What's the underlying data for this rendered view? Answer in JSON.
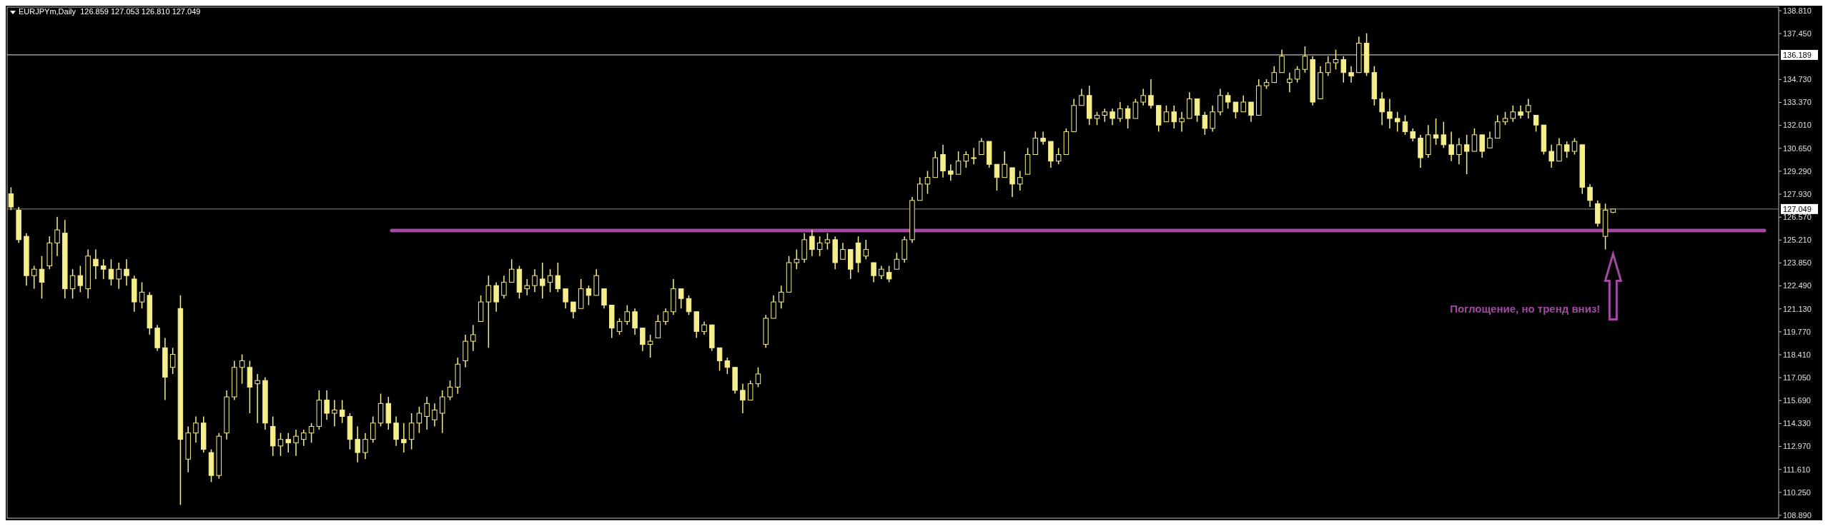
{
  "chart_data": {
    "type": "candlestick",
    "title": "EURJPYm,Daily  126.859 127.053 126.810 127.049",
    "color": "#f5ee8a",
    "categories": [
      null,
      null,
      null,
      null,
      null,
      null,
      null,
      null,
      null,
      null,
      null,
      null,
      null,
      null,
      null,
      null,
      null,
      null,
      null,
      null,
      null,
      null,
      null,
      null,
      null,
      null,
      null,
      null,
      null,
      null,
      null,
      null,
      null,
      null,
      null,
      null,
      null,
      null,
      null,
      null,
      null,
      null,
      null,
      null,
      null,
      null,
      null,
      null,
      null,
      null,
      null,
      null,
      null,
      null,
      null,
      null,
      null,
      null,
      null,
      null,
      null,
      null,
      null,
      null,
      null,
      null,
      null,
      null,
      null,
      null,
      null,
      null,
      null,
      null,
      null,
      null,
      null,
      null,
      null,
      null,
      null,
      null,
      null,
      null,
      null,
      null,
      null,
      null,
      null,
      null,
      null,
      null,
      null,
      null,
      null,
      null,
      null,
      null,
      null,
      null,
      null,
      null,
      null,
      null,
      null,
      null,
      null,
      null,
      null,
      null,
      null,
      null,
      null,
      null,
      null,
      null,
      null,
      null,
      null,
      null,
      null,
      null,
      null,
      null,
      null,
      null,
      null,
      null,
      null,
      null,
      null,
      null,
      null,
      null,
      null,
      null,
      null,
      null,
      null,
      null,
      null,
      null,
      null,
      null,
      null,
      null,
      null,
      null,
      null,
      null,
      null,
      null,
      null,
      null,
      null,
      null,
      null,
      null,
      null,
      null,
      null,
      null,
      null,
      null,
      null,
      null,
      null,
      null,
      null,
      null,
      null,
      null,
      null,
      null,
      null,
      null,
      null,
      null,
      null,
      null,
      null,
      null,
      null,
      null,
      null,
      null,
      null,
      null,
      null,
      null,
      null,
      null,
      null,
      null,
      null,
      null,
      null,
      null,
      null,
      null,
      null,
      null,
      null,
      null,
      null,
      null,
      null,
      null,
      null,
      null,
      null,
      null,
      null,
      null,
      null,
      null,
      null,
      null,
      null,
      null,
      null,
      null,
      null,
      null,
      null,
      null,
      null,
      null,
      null,
      null
    ],
    "ohlc": [
      [
        127.95,
        128.34,
        126.98,
        127.17
      ],
      [
        126.98,
        127.17,
        125.04,
        125.23
      ],
      [
        125.43,
        125.62,
        122.51,
        123.1
      ],
      [
        123.1,
        123.68,
        122.32,
        123.48
      ],
      [
        123.48,
        124.26,
        121.74,
        122.71
      ],
      [
        123.68,
        125.43,
        123.48,
        125.04
      ],
      [
        125.04,
        126.59,
        124.26,
        125.81
      ],
      [
        125.62,
        126.4,
        121.74,
        122.32
      ],
      [
        122.32,
        123.48,
        121.74,
        123.1
      ],
      [
        123.1,
        123.68,
        122.12,
        122.51
      ],
      [
        122.32,
        124.65,
        121.74,
        124.26
      ],
      [
        124.07,
        124.65,
        122.9,
        123.68
      ],
      [
        123.68,
        124.07,
        122.9,
        123.48
      ],
      [
        123.48,
        124.07,
        122.51,
        122.9
      ],
      [
        122.9,
        123.87,
        122.32,
        123.48
      ],
      [
        123.48,
        124.07,
        122.51,
        123.1
      ],
      [
        122.9,
        123.1,
        120.96,
        121.54
      ],
      [
        121.54,
        122.71,
        121.15,
        122.12
      ],
      [
        121.93,
        122.12,
        119.6,
        119.99
      ],
      [
        119.99,
        120.18,
        118.63,
        118.82
      ],
      [
        118.82,
        119.41,
        115.72,
        117.08
      ],
      [
        117.66,
        118.82,
        117.27,
        118.43
      ],
      [
        121.15,
        121.93,
        109.5,
        113.39
      ],
      [
        112.22,
        114.16,
        111.44,
        113.77
      ],
      [
        113.77,
        114.75,
        113.19,
        114.36
      ],
      [
        114.36,
        114.75,
        112.61,
        112.8
      ],
      [
        112.61,
        112.8,
        110.86,
        111.25
      ],
      [
        111.25,
        113.77,
        111.06,
        113.58
      ],
      [
        113.77,
        116.3,
        113.39,
        115.91
      ],
      [
        115.91,
        118.05,
        115.72,
        117.66
      ],
      [
        117.66,
        118.43,
        116.69,
        118.05
      ],
      [
        117.66,
        118.05,
        114.94,
        116.49
      ],
      [
        116.69,
        117.27,
        114.36,
        116.88
      ],
      [
        116.88,
        117.08,
        113.97,
        114.36
      ],
      [
        114.16,
        114.75,
        112.41,
        113.0
      ],
      [
        113.0,
        113.77,
        112.41,
        113.39
      ],
      [
        113.39,
        113.77,
        112.61,
        113.19
      ],
      [
        113.19,
        113.97,
        112.41,
        113.58
      ],
      [
        113.39,
        113.97,
        113.0,
        113.77
      ],
      [
        113.77,
        114.36,
        113.19,
        114.16
      ],
      [
        114.16,
        116.3,
        113.97,
        115.72
      ],
      [
        115.72,
        116.3,
        114.55,
        114.94
      ],
      [
        114.94,
        115.72,
        114.16,
        115.13
      ],
      [
        115.13,
        115.72,
        114.36,
        114.75
      ],
      [
        114.75,
        114.94,
        112.8,
        113.39
      ],
      [
        113.39,
        114.16,
        112.03,
        112.61
      ],
      [
        112.61,
        113.77,
        112.22,
        113.39
      ],
      [
        113.39,
        114.75,
        113.19,
        114.36
      ],
      [
        114.36,
        116.1,
        114.16,
        115.52
      ],
      [
        115.52,
        115.91,
        113.97,
        114.36
      ],
      [
        114.36,
        114.75,
        113.0,
        113.39
      ],
      [
        113.39,
        114.36,
        112.61,
        113.19
      ],
      [
        113.39,
        114.94,
        112.8,
        114.36
      ],
      [
        114.36,
        115.33,
        113.77,
        114.94
      ],
      [
        114.75,
        115.91,
        113.97,
        115.52
      ],
      [
        114.55,
        115.52,
        114.16,
        115.13
      ],
      [
        114.94,
        116.3,
        113.77,
        115.91
      ],
      [
        115.91,
        116.88,
        115.72,
        116.49
      ],
      [
        116.49,
        118.24,
        116.1,
        117.85
      ],
      [
        118.05,
        119.6,
        117.66,
        119.21
      ],
      [
        119.21,
        120.18,
        118.63,
        119.6
      ],
      [
        120.38,
        121.93,
        120.38,
        121.54
      ],
      [
        121.54,
        123.1,
        118.82,
        122.51
      ],
      [
        122.51,
        122.71,
        120.96,
        121.54
      ],
      [
        121.93,
        123.1,
        121.74,
        122.71
      ],
      [
        122.71,
        124.07,
        122.71,
        123.48
      ],
      [
        123.48,
        123.68,
        121.74,
        122.12
      ],
      [
        122.32,
        122.9,
        121.93,
        122.51
      ],
      [
        122.51,
        123.48,
        122.12,
        123.1
      ],
      [
        122.9,
        123.87,
        121.74,
        122.51
      ],
      [
        122.71,
        123.48,
        122.12,
        123.1
      ],
      [
        123.1,
        123.87,
        122.12,
        122.32
      ],
      [
        122.32,
        122.32,
        121.15,
        121.54
      ],
      [
        121.54,
        121.54,
        120.57,
        120.96
      ],
      [
        121.15,
        122.9,
        121.15,
        122.32
      ],
      [
        122.32,
        122.51,
        121.35,
        121.93
      ],
      [
        121.93,
        123.48,
        121.93,
        123.1
      ],
      [
        122.32,
        122.32,
        121.15,
        121.35
      ],
      [
        121.35,
        121.35,
        119.41,
        119.99
      ],
      [
        119.79,
        120.57,
        119.6,
        120.38
      ],
      [
        120.38,
        121.35,
        120.18,
        120.96
      ],
      [
        120.96,
        121.15,
        119.6,
        119.99
      ],
      [
        119.99,
        119.99,
        118.63,
        119.02
      ],
      [
        119.02,
        119.6,
        118.24,
        119.21
      ],
      [
        119.41,
        120.77,
        119.41,
        120.38
      ],
      [
        120.38,
        121.15,
        120.18,
        120.96
      ],
      [
        120.96,
        122.9,
        120.77,
        122.32
      ],
      [
        122.32,
        122.32,
        121.15,
        121.74
      ],
      [
        121.74,
        121.93,
        120.77,
        120.96
      ],
      [
        120.96,
        120.96,
        119.41,
        119.79
      ],
      [
        119.79,
        120.38,
        119.6,
        120.18
      ],
      [
        120.18,
        120.18,
        118.63,
        118.82
      ],
      [
        118.82,
        118.82,
        117.46,
        118.05
      ],
      [
        118.05,
        118.24,
        117.27,
        117.66
      ],
      [
        117.66,
        117.66,
        116.1,
        116.3
      ],
      [
        116.3,
        116.69,
        114.94,
        115.72
      ],
      [
        115.72,
        116.88,
        115.72,
        116.69
      ],
      [
        116.69,
        117.66,
        116.49,
        117.27
      ],
      [
        119.02,
        120.77,
        118.82,
        120.57
      ],
      [
        120.57,
        121.93,
        120.57,
        121.54
      ],
      [
        121.54,
        122.51,
        121.15,
        122.12
      ],
      [
        122.12,
        124.26,
        122.12,
        123.87
      ],
      [
        123.87,
        124.65,
        123.48,
        124.07
      ],
      [
        124.07,
        125.62,
        123.87,
        125.23
      ],
      [
        125.43,
        125.81,
        124.26,
        124.65
      ],
      [
        124.65,
        125.43,
        124.26,
        125.04
      ],
      [
        125.04,
        125.62,
        124.65,
        125.23
      ],
      [
        125.23,
        125.43,
        123.48,
        123.87
      ],
      [
        124.07,
        125.04,
        124.07,
        124.65
      ],
      [
        124.65,
        124.65,
        122.9,
        123.48
      ],
      [
        125.04,
        125.43,
        123.29,
        123.87
      ],
      [
        124.26,
        125.23,
        124.07,
        124.65
      ],
      [
        123.87,
        123.87,
        122.71,
        123.1
      ],
      [
        123.1,
        123.68,
        122.9,
        123.48
      ],
      [
        123.29,
        123.68,
        122.71,
        122.9
      ],
      [
        123.48,
        124.45,
        123.48,
        124.07
      ],
      [
        124.07,
        125.43,
        123.87,
        125.23
      ],
      [
        125.23,
        127.76,
        125.04,
        127.56
      ],
      [
        127.56,
        128.92,
        127.56,
        128.53
      ],
      [
        128.53,
        129.31,
        127.95,
        128.92
      ],
      [
        128.92,
        130.47,
        128.92,
        130.09
      ],
      [
        130.28,
        130.86,
        128.92,
        129.31
      ],
      [
        129.31,
        129.7,
        128.73,
        129.11
      ],
      [
        129.11,
        130.47,
        129.11,
        129.89
      ],
      [
        129.89,
        130.47,
        129.5,
        130.28
      ],
      [
        130.09,
        130.67,
        129.7,
        130.09
      ],
      [
        130.28,
        131.25,
        130.28,
        131.06
      ],
      [
        131.06,
        131.06,
        129.5,
        129.7
      ],
      [
        129.7,
        129.7,
        128.14,
        128.92
      ],
      [
        128.92,
        130.47,
        128.92,
        129.7
      ],
      [
        129.5,
        129.5,
        127.76,
        128.53
      ],
      [
        128.53,
        129.31,
        128.14,
        128.92
      ],
      [
        129.11,
        130.67,
        129.11,
        130.28
      ],
      [
        130.28,
        131.64,
        130.28,
        131.25
      ],
      [
        131.25,
        131.64,
        130.86,
        131.06
      ],
      [
        131.06,
        131.06,
        129.5,
        129.89
      ],
      [
        129.89,
        130.67,
        129.7,
        130.28
      ],
      [
        130.28,
        131.83,
        130.28,
        131.64
      ],
      [
        131.64,
        133.58,
        131.64,
        133.19
      ],
      [
        133.19,
        134.17,
        133.19,
        133.78
      ],
      [
        133.78,
        134.36,
        132.03,
        132.42
      ],
      [
        132.42,
        132.81,
        132.03,
        132.61
      ],
      [
        132.61,
        133.0,
        132.22,
        132.81
      ],
      [
        132.81,
        133.0,
        132.03,
        132.42
      ],
      [
        132.42,
        133.39,
        132.22,
        133.0
      ],
      [
        133.0,
        133.19,
        131.83,
        132.42
      ],
      [
        132.42,
        133.58,
        132.42,
        133.39
      ],
      [
        133.39,
        134.17,
        133.19,
        133.78
      ],
      [
        133.78,
        134.75,
        133.0,
        133.19
      ],
      [
        133.19,
        133.19,
        131.64,
        132.03
      ],
      [
        132.22,
        133.19,
        132.22,
        132.81
      ],
      [
        132.81,
        133.19,
        131.83,
        132.22
      ],
      [
        132.22,
        132.81,
        131.64,
        132.42
      ],
      [
        132.42,
        133.97,
        132.42,
        133.58
      ],
      [
        133.58,
        133.58,
        132.22,
        132.61
      ],
      [
        132.61,
        132.81,
        131.45,
        131.83
      ],
      [
        131.83,
        133.19,
        131.64,
        132.81
      ],
      [
        132.81,
        134.17,
        132.61,
        133.78
      ],
      [
        133.78,
        133.97,
        133.0,
        133.39
      ],
      [
        133.39,
        133.39,
        132.42,
        132.81
      ],
      [
        132.81,
        133.78,
        132.81,
        133.39
      ],
      [
        133.39,
        133.39,
        132.22,
        132.61
      ],
      [
        132.61,
        134.75,
        132.61,
        134.36
      ],
      [
        134.36,
        134.75,
        134.17,
        134.55
      ],
      [
        134.55,
        135.52,
        134.55,
        135.14
      ],
      [
        135.14,
        136.5,
        135.14,
        136.11
      ],
      [
        134.55,
        135.14,
        133.97,
        134.75
      ],
      [
        134.75,
        135.52,
        134.55,
        135.33
      ],
      [
        135.33,
        136.69,
        135.14,
        136.11
      ],
      [
        135.91,
        136.11,
        133.19,
        133.39
      ],
      [
        133.58,
        135.52,
        133.58,
        135.14
      ],
      [
        135.14,
        136.11,
        134.94,
        135.72
      ],
      [
        135.72,
        136.5,
        135.33,
        135.91
      ],
      [
        135.91,
        136.11,
        134.55,
        135.14
      ],
      [
        135.14,
        135.52,
        134.55,
        134.94
      ],
      [
        135.14,
        137.27,
        135.14,
        136.88
      ],
      [
        136.88,
        137.47,
        134.94,
        135.14
      ],
      [
        135.14,
        135.52,
        133.19,
        133.58
      ],
      [
        133.58,
        133.97,
        132.03,
        132.81
      ],
      [
        132.81,
        133.58,
        131.83,
        132.42
      ],
      [
        132.42,
        132.81,
        131.64,
        132.22
      ],
      [
        132.22,
        132.61,
        131.45,
        131.64
      ],
      [
        131.64,
        131.83,
        131.06,
        131.25
      ],
      [
        131.25,
        131.45,
        129.5,
        130.09
      ],
      [
        130.28,
        132.03,
        130.09,
        131.45
      ],
      [
        131.45,
        132.42,
        130.86,
        131.25
      ],
      [
        131.45,
        132.22,
        130.67,
        130.86
      ],
      [
        130.86,
        131.64,
        129.89,
        130.28
      ],
      [
        130.28,
        131.25,
        129.7,
        130.86
      ],
      [
        130.86,
        131.45,
        129.11,
        130.47
      ],
      [
        130.47,
        131.83,
        130.47,
        131.45
      ],
      [
        131.45,
        131.45,
        130.09,
        130.47
      ],
      [
        130.67,
        131.64,
        130.67,
        131.25
      ],
      [
        131.25,
        132.61,
        131.25,
        132.22
      ],
      [
        132.22,
        132.81,
        132.03,
        132.42
      ],
      [
        132.42,
        133.19,
        132.22,
        132.81
      ],
      [
        132.81,
        133.19,
        132.42,
        132.61
      ],
      [
        132.81,
        133.58,
        132.42,
        133.19
      ],
      [
        132.61,
        132.61,
        131.64,
        132.03
      ],
      [
        132.03,
        132.03,
        130.28,
        130.47
      ],
      [
        130.47,
        130.86,
        129.5,
        129.89
      ],
      [
        129.89,
        131.25,
        129.89,
        130.86
      ],
      [
        130.86,
        131.06,
        130.09,
        130.47
      ],
      [
        130.47,
        131.25,
        130.28,
        131.06
      ],
      [
        130.86,
        130.86,
        127.95,
        128.34
      ],
      [
        128.34,
        128.53,
        127.17,
        127.56
      ],
      [
        127.37,
        127.56,
        126.01,
        126.2
      ],
      [
        125.43,
        127.37,
        124.65,
        126.98
      ],
      [
        126.859,
        127.053,
        126.81,
        127.049
      ],
      null,
      null,
      null,
      null,
      null,
      null,
      null,
      null,
      null,
      null,
      null,
      null,
      null,
      null,
      null,
      null,
      null,
      null,
      null,
      null,
      null
    ],
    "ylim": [
      108.72,
      139.02
    ],
    "yticks": [
      {
        "value": 138.81,
        "label": "138.810"
      },
      {
        "value": 137.45,
        "label": "137.450"
      },
      {
        "value": 134.73,
        "label": "134.730"
      },
      {
        "value": 133.37,
        "label": "133.370"
      },
      {
        "value": 132.01,
        "label": "132.010"
      },
      {
        "value": 130.65,
        "label": "130.650"
      },
      {
        "value": 129.29,
        "label": "129.290"
      },
      {
        "value": 127.93,
        "label": "127.930"
      },
      {
        "value": 126.57,
        "label": "126.570"
      },
      {
        "value": 125.21,
        "label": "125.210"
      },
      {
        "value": 123.85,
        "label": "123.850"
      },
      {
        "value": 122.49,
        "label": "122.490"
      },
      {
        "value": 121.13,
        "label": "121.130"
      },
      {
        "value": 119.77,
        "label": "119.770"
      },
      {
        "value": 118.41,
        "label": "118.410"
      },
      {
        "value": 117.05,
        "label": "117.050"
      },
      {
        "value": 115.69,
        "label": "115.690"
      },
      {
        "value": 114.33,
        "label": "114.330"
      },
      {
        "value": 112.97,
        "label": "112.970"
      },
      {
        "value": 111.61,
        "label": "111.610"
      },
      {
        "value": 110.25,
        "label": "110.250"
      },
      {
        "value": 108.89,
        "label": "108.890"
      }
    ],
    "ref_lines": [
      {
        "axis": "y",
        "value": 136.189,
        "label": "136.189",
        "color": "#e6e6e6"
      },
      {
        "axis": "y",
        "value": 127.049,
        "label": "127.049",
        "color": "#8a8a8a"
      },
      {
        "axis": "y",
        "value": 125.77,
        "label": null,
        "color": "#a349a4"
      }
    ],
    "annotations": [
      "Поглощение, но тренд вниз!"
    ],
    "grid": false
  }
}
